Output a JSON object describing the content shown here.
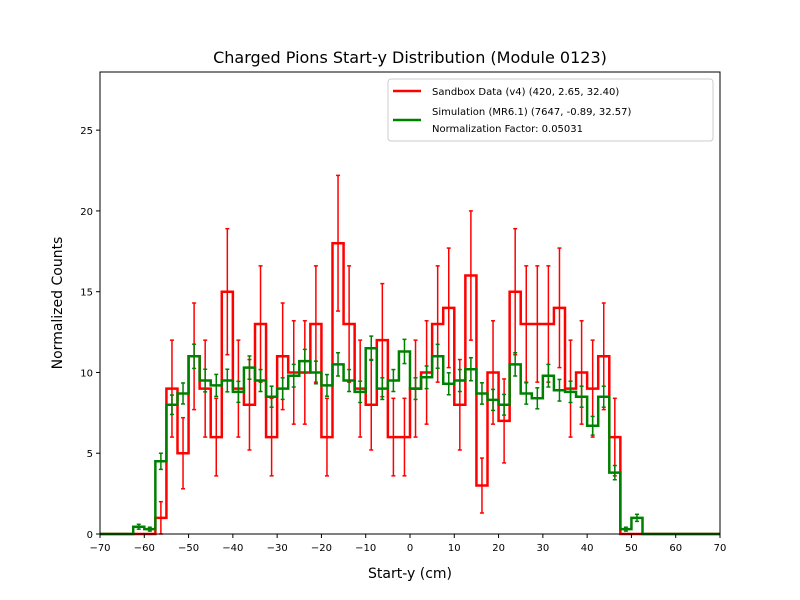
{
  "chart_data": {
    "type": "histogram",
    "title": "Charged Pions Start-y Distribution (Module 0123)",
    "xlabel": "Start-y (cm)",
    "ylabel": "Normalized Counts",
    "xlim": [
      -70,
      70
    ],
    "ylim": [
      0,
      28.6
    ],
    "x_ticks": [
      "−70",
      "−60",
      "−50",
      "−40",
      "−30",
      "−20",
      "−10",
      "0",
      "10",
      "20",
      "30",
      "40",
      "50",
      "60",
      "70"
    ],
    "y_ticks": [
      "0",
      "5",
      "10",
      "15",
      "20",
      "25"
    ],
    "grid": false,
    "legend_position": "top-right",
    "legend": [
      "Sandbox Data (v4) (420, 2.65, 32.40)",
      "Simulation (MR6.1) (7647, -0.89, 32.57)",
      "Normalization Factor: 0.05031"
    ],
    "bin_edges": [
      -70,
      -67.5,
      -65,
      -62.5,
      -60,
      -57.5,
      -55,
      -52.5,
      -50,
      -47.5,
      -45,
      -42.5,
      -40,
      -37.5,
      -35,
      -32.5,
      -30,
      -27.5,
      -25,
      -22.5,
      -20,
      -17.5,
      -15,
      -12.5,
      -10,
      -7.5,
      -5,
      -2.5,
      0,
      2.5,
      5,
      7.5,
      10,
      12.5,
      15,
      17.5,
      20,
      22.5,
      25,
      27.5,
      30,
      32.5,
      35,
      37.5,
      40,
      42.5,
      45,
      47.5,
      50,
      52.5,
      55,
      57.5,
      60,
      62.5,
      65,
      67.5,
      70
    ],
    "series": [
      {
        "name": "Sandbox Data (v4) (420, 2.65, 32.40)",
        "color": "#ff0000",
        "values": [
          0,
          0,
          0,
          0,
          0,
          1,
          9,
          5,
          11,
          9,
          6,
          15,
          9,
          8,
          13,
          6,
          11,
          10,
          10,
          13,
          6,
          18,
          13,
          9,
          8,
          12,
          6,
          6,
          9,
          10,
          13,
          14,
          8,
          16,
          3,
          10,
          7,
          15,
          13,
          13,
          13,
          14,
          9,
          10,
          9,
          11,
          6,
          0,
          0,
          0,
          0,
          0,
          0,
          0,
          0,
          0
        ],
        "errors": [
          0,
          0,
          0,
          0,
          0,
          1,
          3,
          2.2,
          3.3,
          3,
          2.4,
          3.9,
          3,
          2.8,
          3.6,
          2.4,
          3.3,
          3.2,
          3.2,
          3.6,
          2.4,
          4.2,
          3.6,
          3,
          2.8,
          3.5,
          2.4,
          2.4,
          3,
          3.2,
          3.6,
          3.7,
          2.8,
          4,
          1.7,
          3.2,
          2.6,
          3.9,
          3.6,
          3.6,
          3.6,
          3.7,
          3,
          3.2,
          3,
          3.3,
          2.4,
          0,
          0,
          0,
          0,
          0,
          0,
          0,
          0,
          0
        ]
      },
      {
        "name": "Simulation (MR6.1) (7647, -0.89, 32.57)",
        "color": "#008000",
        "values": [
          0,
          0,
          0,
          0.45,
          0.3,
          4.5,
          8,
          8.7,
          11,
          9.5,
          9.2,
          9.5,
          8.8,
          10.3,
          9.5,
          8.5,
          9,
          9.8,
          10.7,
          10,
          9.2,
          10.5,
          9.5,
          8.8,
          11.5,
          9,
          9.5,
          11.3,
          9,
          9.7,
          11,
          9.3,
          9.5,
          10.2,
          8.7,
          8.3,
          8,
          10.5,
          8.7,
          8.4,
          9.8,
          8.9,
          8.8,
          8.5,
          6.7,
          8.5,
          3.8,
          0.3,
          1.0,
          0,
          0,
          0,
          0,
          0,
          0,
          0
        ],
        "errors": [
          0,
          0,
          0,
          0.15,
          0.12,
          0.5,
          0.6,
          0.65,
          0.75,
          0.7,
          0.68,
          0.7,
          0.65,
          0.72,
          0.68,
          0.65,
          0.67,
          0.7,
          0.73,
          0.7,
          0.67,
          0.72,
          0.68,
          0.66,
          0.75,
          0.67,
          0.68,
          0.75,
          0.67,
          0.7,
          0.74,
          0.68,
          0.68,
          0.71,
          0.66,
          0.65,
          0.64,
          0.72,
          0.66,
          0.65,
          0.7,
          0.67,
          0.66,
          0.65,
          0.58,
          0.65,
          0.44,
          0.12,
          0.22,
          0,
          0,
          0,
          0,
          0,
          0,
          0
        ]
      }
    ]
  }
}
